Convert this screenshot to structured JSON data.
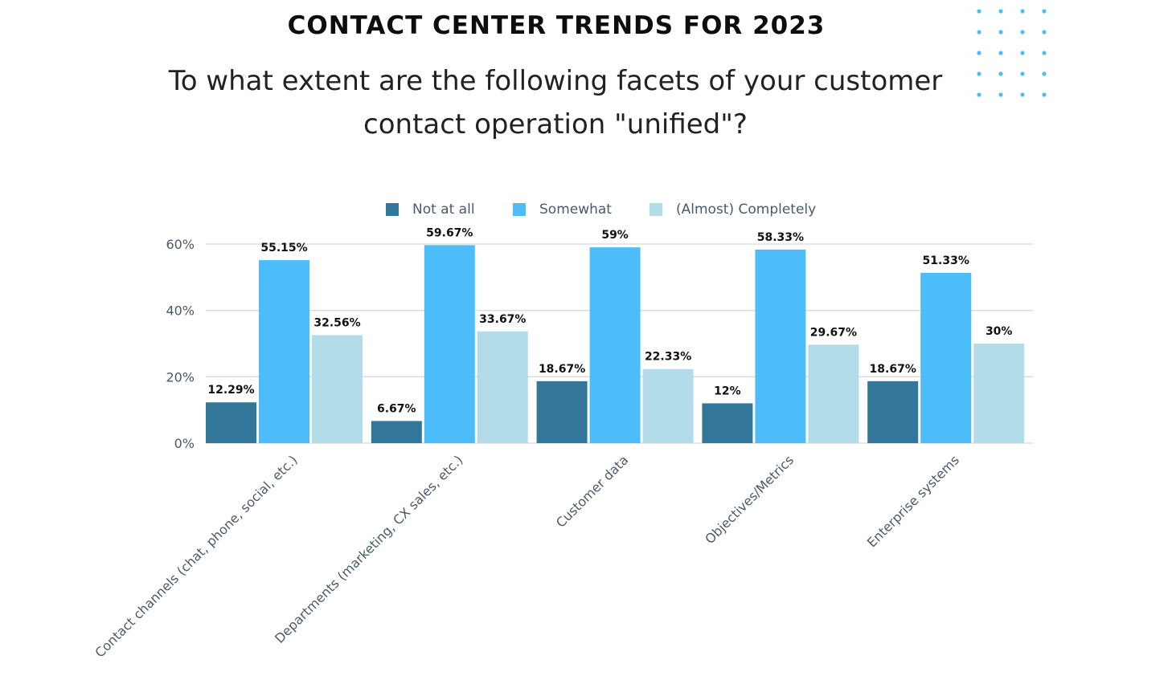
{
  "header": {
    "title": "CONTACT CENTER TRENDS FOR 2023",
    "subtitle": "To what extent are the following facets of your customer contact operation \"unified\"?"
  },
  "colors": {
    "not_at_all": "#32779A",
    "somewhat": "#4DBDFA",
    "almost_completely": "#B3DCEB",
    "dots": "#4DBDFA",
    "gridline": "#D9D9D9",
    "axis_text": "#4a5a6a"
  },
  "chart_data": {
    "type": "bar",
    "title": "",
    "xlabel": "",
    "ylabel": "",
    "ylim": [
      0,
      60
    ],
    "yticks": [
      0,
      20,
      40,
      60
    ],
    "ytick_labels": [
      "0%",
      "20%",
      "40%",
      "60%"
    ],
    "grid": true,
    "legend_position": "top-center",
    "categories": [
      "Contact channels (chat, phone, social, etc.)",
      "Departments (marketing, CX sales, etc.)",
      "Customer data",
      "Objectives/Metrics",
      "Enterprise systems"
    ],
    "series": [
      {
        "name": "Not at all",
        "color": "#32779A",
        "values": [
          12.29,
          6.67,
          18.67,
          12,
          18.67
        ],
        "labels": [
          "12.29%",
          "6.67%",
          "18.67%",
          "12%",
          "18.67%"
        ]
      },
      {
        "name": "Somewhat",
        "color": "#4DBDFA",
        "values": [
          55.15,
          59.67,
          59,
          58.33,
          51.33
        ],
        "labels": [
          "55.15%",
          "59.67%",
          "59%",
          "58.33%",
          "51.33%"
        ]
      },
      {
        "name": "(Almost) Completely",
        "color": "#B3DCEB",
        "values": [
          32.56,
          33.67,
          22.33,
          29.67,
          30
        ],
        "labels": [
          "32.56%",
          "33.67%",
          "22.33%",
          "29.67%",
          "30%"
        ]
      }
    ]
  }
}
